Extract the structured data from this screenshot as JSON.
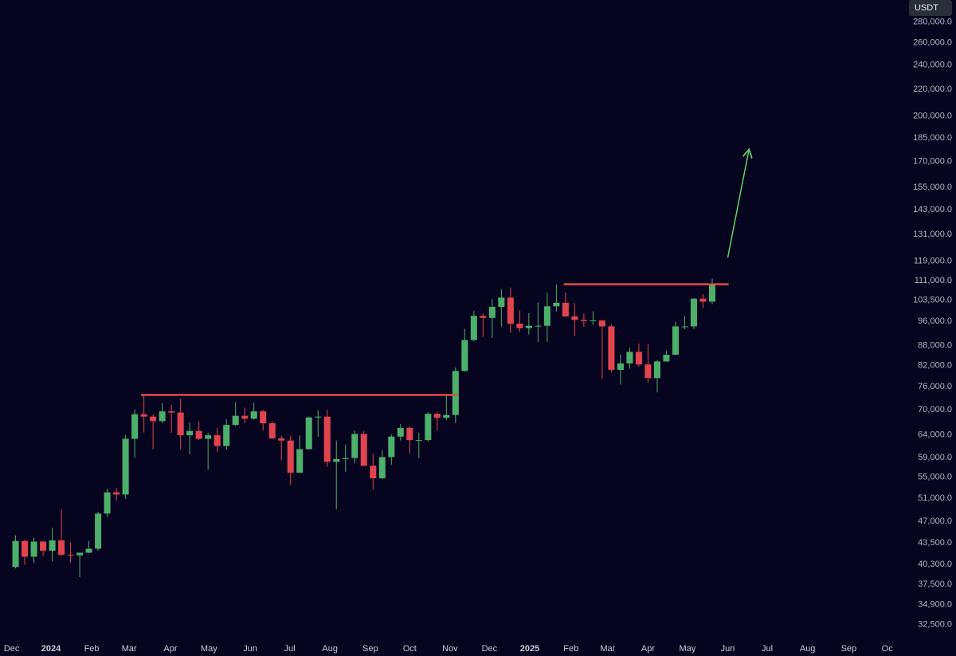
{
  "chart_data": {
    "type": "candlestick",
    "currency": "USDT",
    "up_color": "#4caf6a",
    "down_color": "#e0454f",
    "log_scale": true,
    "xlim": [
      -1.7,
      102.6
    ],
    "xticks": [
      {
        "value": -0.43,
        "label": "Dec"
      },
      {
        "value": 3.86,
        "label": "2024"
      },
      {
        "value": 8.3,
        "label": "Feb"
      },
      {
        "value": 12.4,
        "label": "Mar"
      },
      {
        "value": 16.9,
        "label": "Apr"
      },
      {
        "value": 21.1,
        "label": "May"
      },
      {
        "value": 25.6,
        "label": "Jun"
      },
      {
        "value": 29.9,
        "label": "Jul"
      },
      {
        "value": 34.3,
        "label": "Aug"
      },
      {
        "value": 38.7,
        "label": "Sep"
      },
      {
        "value": 43.0,
        "label": "Oct"
      },
      {
        "value": 47.4,
        "label": "Nov"
      },
      {
        "value": 51.7,
        "label": "Dec"
      },
      {
        "value": 56.1,
        "label": "2025"
      },
      {
        "value": 60.6,
        "label": "Feb"
      },
      {
        "value": 64.6,
        "label": "Mar"
      },
      {
        "value": 69.0,
        "label": "Apr"
      },
      {
        "value": 73.3,
        "label": "May"
      },
      {
        "value": 77.7,
        "label": "Jun"
      },
      {
        "value": 82.0,
        "label": "Jul"
      },
      {
        "value": 86.4,
        "label": "Aug"
      },
      {
        "value": 90.9,
        "label": "Sep"
      },
      {
        "value": 95.1,
        "label": "Oc"
      }
    ],
    "ylim": [
      31000,
      302700
    ],
    "yticks": [
      {
        "value": 280000,
        "label": "280,000.0"
      },
      {
        "value": 260000,
        "label": "260,000.0"
      },
      {
        "value": 240000,
        "label": "240,000.0"
      },
      {
        "value": 220000,
        "label": "220,000.0"
      },
      {
        "value": 200000,
        "label": "200,000.0"
      },
      {
        "value": 185000,
        "label": "185,000.0"
      },
      {
        "value": 170000,
        "label": "170,000.0"
      },
      {
        "value": 155000,
        "label": "155,000.0"
      },
      {
        "value": 143000,
        "label": "143,000.0"
      },
      {
        "value": 131000,
        "label": "131,000.0"
      },
      {
        "value": 119000,
        "label": "119,000.0"
      },
      {
        "value": 111000,
        "label": "111,000.0"
      },
      {
        "value": 103500,
        "label": "103,500.0"
      },
      {
        "value": 96000,
        "label": "96,000.0"
      },
      {
        "value": 88000,
        "label": "88,000.0"
      },
      {
        "value": 82000,
        "label": "82,000.0"
      },
      {
        "value": 76000,
        "label": "76,000.0"
      },
      {
        "value": 70000,
        "label": "70,000.0"
      },
      {
        "value": 64000,
        "label": "64,000.0"
      },
      {
        "value": 59000,
        "label": "59,000.0"
      },
      {
        "value": 55000,
        "label": "55,000.0"
      },
      {
        "value": 51000,
        "label": "51,000.0"
      },
      {
        "value": 47000,
        "label": "47,000.0"
      },
      {
        "value": 43500,
        "label": "43,500.0"
      },
      {
        "value": 40300,
        "label": "40,300.0"
      },
      {
        "value": 37500,
        "label": "37,500.0"
      },
      {
        "value": 34900,
        "label": "34,900.0"
      },
      {
        "value": 32500,
        "label": "32,500.0"
      }
    ],
    "open": [
      39900,
      43800,
      41400,
      43700,
      42300,
      43900,
      41700,
      41600,
      42000,
      42600,
      48300,
      52100,
      51700,
      63100,
      68900,
      68300,
      67200,
      69600,
      69300,
      63900,
      64900,
      63100,
      63900,
      61500,
      66300,
      68500,
      67800,
      69600,
      66700,
      63200,
      62700,
      55900,
      60800,
      68100,
      68300,
      58100,
      58700,
      58900,
      64200,
      57300,
      54800,
      59100,
      63600,
      65600,
      62800,
      62800,
      69000,
      68000,
      68700,
      80400,
      89800,
      97900,
      97200,
      101100,
      104500,
      95200,
      93700,
      94500,
      94500,
      101300,
      102600,
      97700,
      96500,
      96100,
      96300,
      94300,
      80700,
      82600,
      86100,
      82300,
      78400,
      83200,
      85200,
      94300,
      94300,
      104100,
      103000
    ],
    "high": [
      44700,
      44000,
      44300,
      43800,
      45900,
      49000,
      43600,
      42000,
      43800,
      48600,
      52800,
      52900,
      64000,
      70100,
      73800,
      68900,
      71700,
      71300,
      72800,
      66900,
      67200,
      64500,
      65500,
      67700,
      71900,
      70500,
      71900,
      70000,
      67200,
      63800,
      63800,
      63900,
      68300,
      69900,
      70000,
      62700,
      61800,
      65000,
      64900,
      59800,
      60600,
      64100,
      66500,
      66000,
      64500,
      69400,
      69500,
      73600,
      81500,
      93500,
      99600,
      98700,
      104000,
      107800,
      108300,
      99900,
      98900,
      102700,
      106400,
      109600,
      106400,
      102500,
      98800,
      99500,
      96500,
      95000,
      85300,
      87400,
      88700,
      88500,
      83600,
      86400,
      95800,
      97900,
      104300,
      105800,
      111900
    ],
    "low": [
      39700,
      40200,
      40500,
      41500,
      40700,
      41500,
      40500,
      38500,
      41900,
      42300,
      47700,
      50600,
      50900,
      59000,
      64500,
      60800,
      66700,
      64500,
      60700,
      59700,
      62800,
      56500,
      60200,
      60700,
      66000,
      66700,
      67600,
      65000,
      63000,
      58500,
      53500,
      55800,
      60700,
      63500,
      57100,
      49100,
      56100,
      57800,
      57200,
      52600,
      54600,
      57500,
      62700,
      59800,
      58900,
      62500,
      65000,
      67500,
      66800,
      80200,
      89400,
      90800,
      90500,
      94200,
      92200,
      92500,
      91600,
      89200,
      89300,
      99500,
      97600,
      91200,
      94100,
      94800,
      78200,
      80000,
      76600,
      81100,
      81600,
      77100,
      74500,
      83100,
      85100,
      93300,
      93400,
      100700,
      102100
    ],
    "close": [
      43800,
      41400,
      43700,
      42300,
      43900,
      41700,
      41600,
      42000,
      42600,
      48300,
      52100,
      51700,
      63100,
      68900,
      68300,
      67200,
      69600,
      69300,
      63900,
      64900,
      63100,
      63900,
      61500,
      66300,
      68500,
      67800,
      69600,
      66700,
      63200,
      62700,
      55900,
      60800,
      68100,
      68300,
      58100,
      58700,
      58900,
      64200,
      57300,
      54800,
      59100,
      63600,
      65600,
      62800,
      62800,
      69000,
      68000,
      68700,
      80400,
      89800,
      97900,
      97200,
      101100,
      104500,
      95200,
      93700,
      94500,
      94500,
      101300,
      102600,
      97700,
      96500,
      96100,
      96300,
      94300,
      80700,
      82600,
      86100,
      82300,
      78400,
      83200,
      85200,
      94300,
      94300,
      104100,
      103000,
      109500
    ],
    "hlines": [
      {
        "value": 73800,
        "from": 13.7,
        "to": 48.2,
        "color": "#e54b4b"
      },
      {
        "value": 109600,
        "from": 59.8,
        "to": 77.8,
        "color": "#e54b4b"
      }
    ],
    "arrow": {
      "x": [
        77.7,
        80.0
      ],
      "y": [
        120600,
        177000
      ],
      "color": "#5fd068"
    }
  }
}
